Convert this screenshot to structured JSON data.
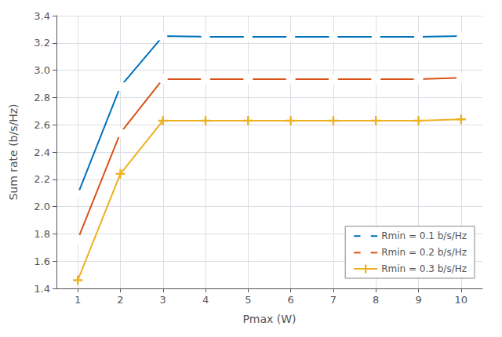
{
  "chart_data": {
    "type": "line",
    "xlabel": "Pmax (W)",
    "ylabel": "Sum rate (b/s/Hz)",
    "x": [
      1,
      2,
      3,
      4,
      5,
      6,
      7,
      8,
      9,
      10
    ],
    "series": [
      {
        "name": "Rmin = 0.1 b/s/Hz",
        "color": "#0072BD",
        "marker": "square",
        "values": [
          2.09,
          2.88,
          3.25,
          3.245,
          3.245,
          3.245,
          3.245,
          3.245,
          3.245,
          3.25
        ]
      },
      {
        "name": "Rmin = 0.2 b/s/Hz",
        "color": "#D95319",
        "marker": "circle",
        "values": [
          1.76,
          2.54,
          2.935,
          2.935,
          2.935,
          2.935,
          2.935,
          2.935,
          2.935,
          2.945
        ]
      },
      {
        "name": "Rmin = 0.3 b/s/Hz",
        "color": "#EDB120",
        "marker": "plus",
        "values": [
          1.46,
          2.24,
          2.63,
          2.63,
          2.63,
          2.63,
          2.63,
          2.63,
          2.63,
          2.64
        ]
      }
    ],
    "xlim": [
      0.5,
      10.5
    ],
    "xticks": [
      1,
      2,
      3,
      4,
      5,
      6,
      7,
      8,
      9,
      10
    ],
    "ylim": [
      1.4,
      3.4
    ],
    "yticks": [
      1.4,
      1.6,
      1.8,
      {
        "value": 2.0,
        "label": "2.0"
      },
      2.2,
      2.4,
      2.6,
      2.8,
      {
        "value": 3.0,
        "label": "3.0"
      },
      3.2,
      3.4
    ],
    "grid": true,
    "legend": "lower right"
  }
}
